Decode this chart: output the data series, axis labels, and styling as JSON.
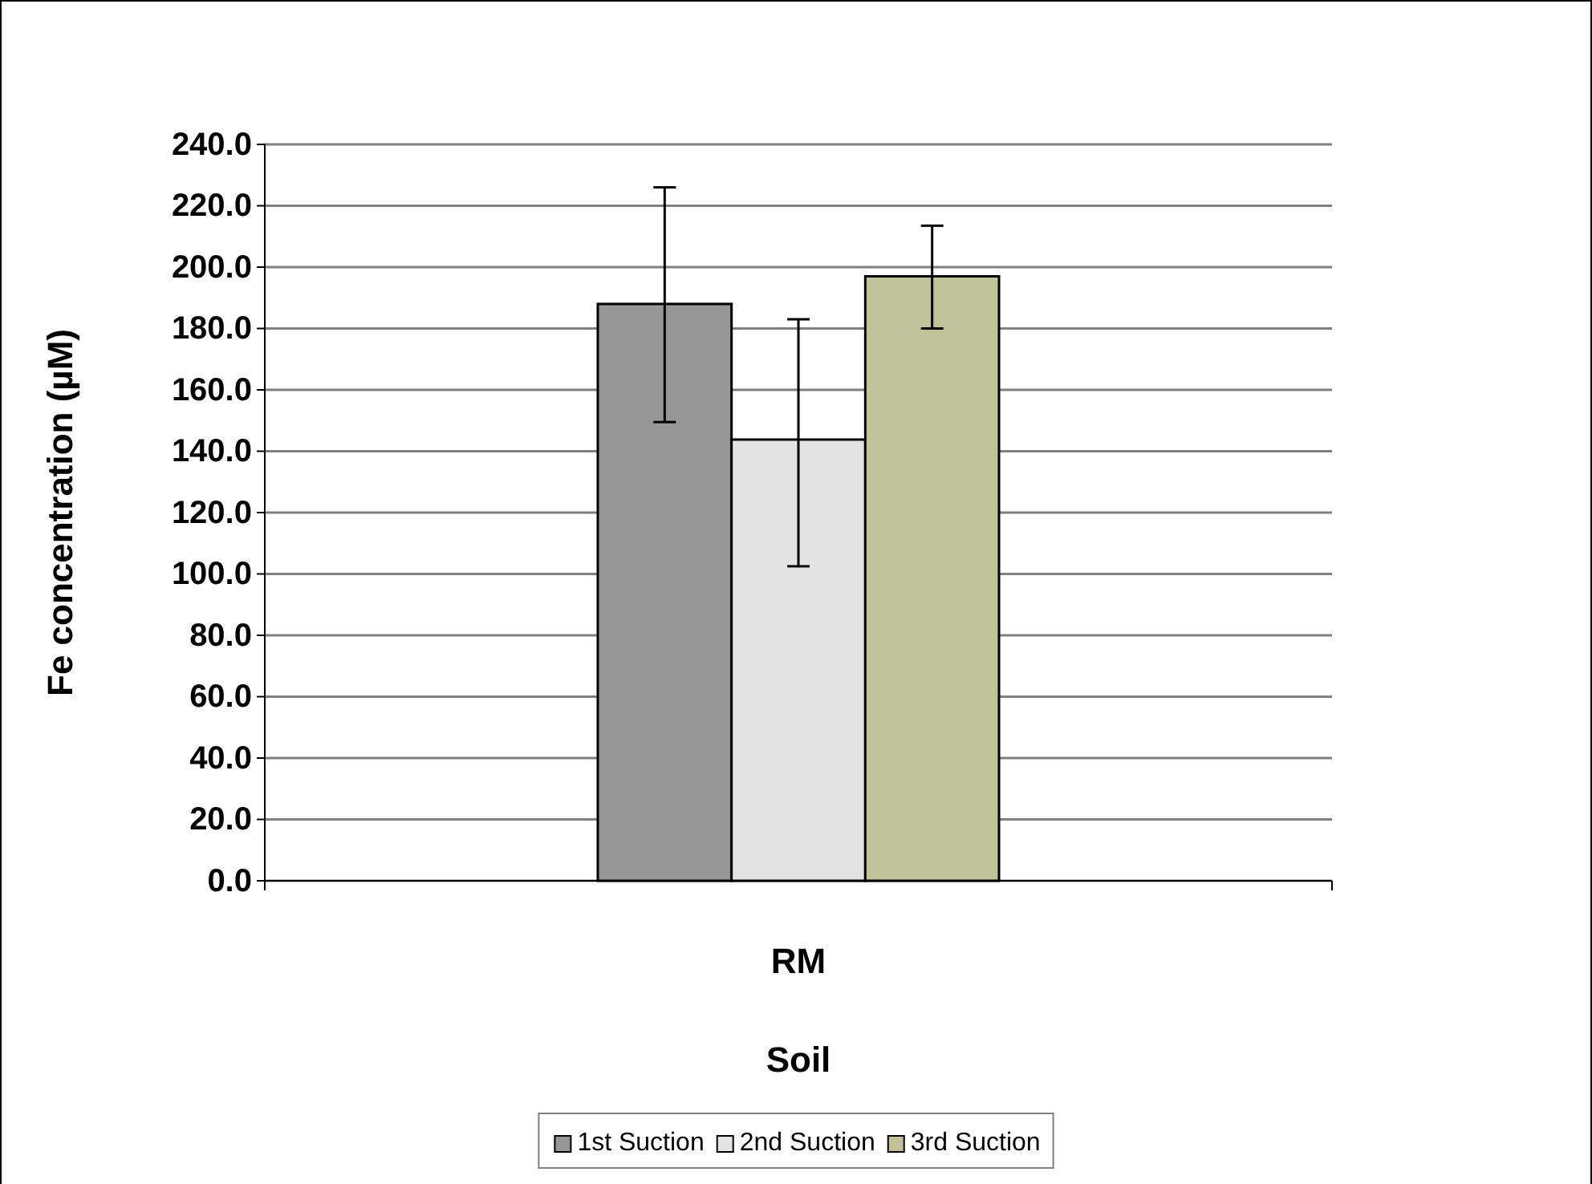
{
  "chart_data": {
    "type": "bar",
    "xlabel": "Soil",
    "ylabel": "Fe concentration (µM)",
    "categories": [
      "RM"
    ],
    "series": [
      {
        "name": "1st Suction",
        "color": "#969696",
        "values": [
          188
        ],
        "errors": [
          [
            149.5,
            226
          ]
        ]
      },
      {
        "name": "2nd Suction",
        "color": "#e3e3e3",
        "values": [
          143.8
        ],
        "errors": [
          [
            102.5,
            183
          ]
        ]
      },
      {
        "name": "3rd Suction",
        "color": "#c0c29a",
        "values": [
          197
        ],
        "errors": [
          [
            180,
            213.5
          ]
        ]
      }
    ],
    "ylim": [
      0,
      240
    ],
    "yticks": [
      {
        "value": 0,
        "label": "0.0"
      },
      {
        "value": 20,
        "label": "20.0"
      },
      {
        "value": 40,
        "label": "40.0"
      },
      {
        "value": 60,
        "label": "60.0"
      },
      {
        "value": 80,
        "label": "80.0"
      },
      {
        "value": 100,
        "label": "100.0"
      },
      {
        "value": 120,
        "label": "120.0"
      },
      {
        "value": 140,
        "label": "140.0"
      },
      {
        "value": 160,
        "label": "160.0"
      },
      {
        "value": 180,
        "label": "180.0"
      },
      {
        "value": 200,
        "label": "200.0"
      },
      {
        "value": 220,
        "label": "220.0"
      },
      {
        "value": 240,
        "label": "240.0"
      }
    ],
    "grid": "y",
    "legend": "bottom"
  }
}
